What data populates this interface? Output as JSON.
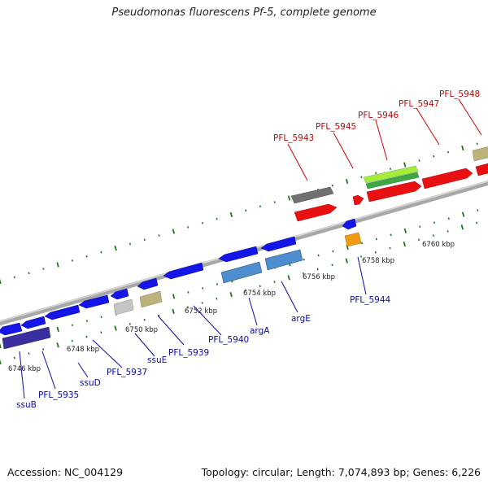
{
  "title": "Pseudomonas fluorescens Pf-5, complete genome",
  "footer": {
    "accession": "Accession: NC_004129",
    "summary": "Topology: circular; Length: 7,074,893 bp; Genes: 6,226"
  },
  "scale_labels": [
    "6746 kbp",
    "6748 kbp",
    "6750 kbp",
    "6752 kbp",
    "6754 kbp",
    "6756 kbp",
    "6758 kbp",
    "6760 kbp"
  ],
  "genes_forward_labels": [
    "PFL_5943",
    "PFL_5945",
    "PFL_5946",
    "PFL_5947",
    "PFL_5948"
  ],
  "genes_reverse_labels": [
    "ssuB",
    "PFL_5935",
    "ssuD",
    "PFL_5937",
    "ssuE",
    "PFL_5939",
    "PFL_5940",
    "argA",
    "argE",
    "PFL_5944"
  ],
  "colors": {
    "forward_label": "#d00000",
    "reverse_label": "#0a0aa8",
    "backbone": "#8c8c8c",
    "tick": "#1a7a1a"
  }
}
